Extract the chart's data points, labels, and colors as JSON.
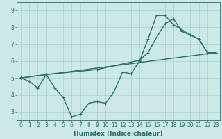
{
  "xlabel": "Humidex (Indice chaleur)",
  "xlim": [
    -0.5,
    23.5
  ],
  "ylim": [
    2.5,
    9.5
  ],
  "yticks": [
    3,
    4,
    5,
    6,
    7,
    8,
    9
  ],
  "xticks": [
    0,
    1,
    2,
    3,
    4,
    5,
    6,
    7,
    8,
    9,
    10,
    11,
    12,
    13,
    14,
    15,
    16,
    17,
    18,
    19,
    20,
    21,
    22,
    23
  ],
  "background_color": "#cce9e8",
  "grid_color": "#aacfce",
  "line_color": "#2a6e6e",
  "line1_x": [
    0,
    1,
    2,
    3,
    4,
    5,
    6,
    7,
    8,
    9,
    10,
    11,
    12,
    13,
    14,
    15,
    16,
    17,
    18,
    19,
    20,
    21,
    22,
    23
  ],
  "line1_y": [
    5.0,
    4.8,
    4.4,
    5.2,
    4.4,
    3.85,
    2.7,
    2.85,
    3.5,
    3.6,
    3.5,
    4.2,
    5.35,
    5.25,
    6.0,
    7.3,
    8.7,
    8.7,
    8.15,
    7.85,
    7.55,
    7.3,
    6.5,
    6.5
  ],
  "line2_x": [
    0,
    3,
    9,
    14,
    15,
    16,
    17,
    18,
    19,
    20,
    21,
    22,
    23
  ],
  "line2_y": [
    5.0,
    5.2,
    5.5,
    6.05,
    6.5,
    7.4,
    8.2,
    8.5,
    7.75,
    7.55,
    7.3,
    6.5,
    6.5
  ],
  "line3_x": [
    0,
    23
  ],
  "line3_y": [
    5.0,
    6.5
  ],
  "marker_size": 2.5,
  "line_width": 1.0,
  "tick_fontsize": 5.5,
  "label_fontsize": 6.5
}
